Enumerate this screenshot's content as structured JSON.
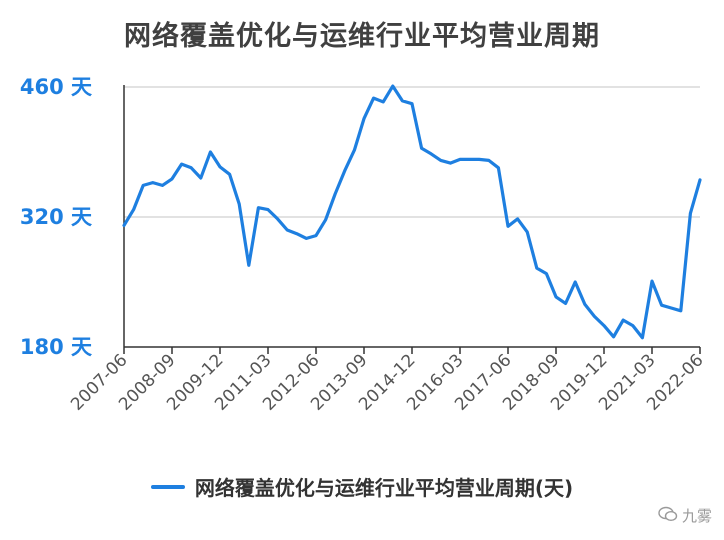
{
  "title": "网络覆盖优化与运维行业平均营业周期",
  "legend_label": "网络覆盖优化与运维行业平均营业周期(天)",
  "watermark_text": "九雾",
  "colors": {
    "series": "#1e7fe0",
    "ytick": "#1e7fe0",
    "grid": "#d9d9d9",
    "axis": "#333333",
    "xtick": "#555555"
  },
  "chart_data": {
    "type": "line",
    "ylim": [
      180,
      460
    ],
    "yticks": [
      180,
      320,
      460
    ],
    "ytick_labels": [
      "180 天",
      "320 天",
      "460 天"
    ],
    "xtick_labels": [
      "2007-06",
      "2008-09",
      "2009-12",
      "2011-03",
      "2012-06",
      "2013-09",
      "2014-12",
      "2016-03",
      "2017-06",
      "2018-09",
      "2019-12",
      "2021-03",
      "2022-06"
    ],
    "grid": "horizontal",
    "legend_position": "bottom",
    "series": [
      {
        "name": "网络覆盖优化与运维行业平均营业周期(天)",
        "values": [
          311,
          328,
          354,
          357,
          354,
          361,
          377,
          373,
          362,
          390,
          374,
          366,
          334,
          268,
          330,
          328,
          318,
          306,
          302,
          297,
          300,
          317,
          345,
          370,
          392,
          426,
          448,
          444,
          461,
          445,
          442,
          394,
          388,
          381,
          378,
          382,
          382,
          382,
          381,
          373,
          310,
          318,
          304,
          265,
          259,
          234,
          227,
          250,
          226,
          213,
          203,
          191,
          209,
          203,
          190,
          251,
          225,
          222,
          219,
          324,
          360
        ]
      }
    ]
  }
}
